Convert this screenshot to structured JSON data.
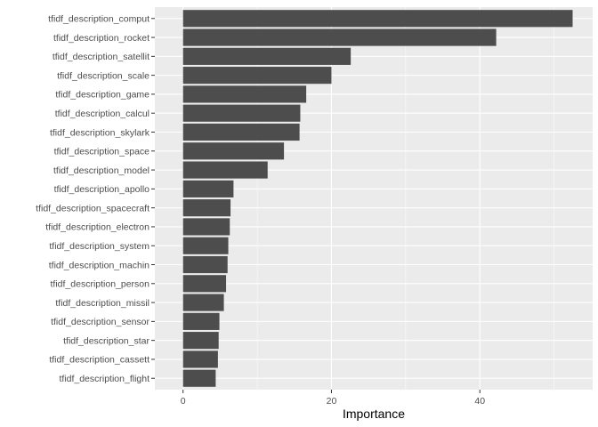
{
  "chart_data": {
    "type": "bar",
    "orientation": "horizontal",
    "xlabel": "Importance",
    "ylabel": "",
    "xlim": [
      -3.8,
      55.2
    ],
    "xticks": [
      0,
      20,
      40
    ],
    "grid": true,
    "legend": "none",
    "colors": {
      "panel_background": "#ebebeb",
      "grid_major": "#ffffff",
      "bar_fill": "#4d4d4d"
    },
    "categories": [
      "tfidf_description_comput",
      "tfidf_description_rocket",
      "tfidf_description_satellit",
      "tfidf_description_scale",
      "tfidf_description_game",
      "tfidf_description_calcul",
      "tfidf_description_skylark",
      "tfidf_description_space",
      "tfidf_description_model",
      "tfidf_description_apollo",
      "tfidf_description_spacecraft",
      "tfidf_description_electron",
      "tfidf_description_system",
      "tfidf_description_machin",
      "tfidf_description_person",
      "tfidf_description_missil",
      "tfidf_description_sensor",
      "tfidf_description_star",
      "tfidf_description_cassett",
      "tfidf_description_flight"
    ],
    "values": [
      52.5,
      42.2,
      22.6,
      20.0,
      16.6,
      15.8,
      15.7,
      13.6,
      11.4,
      6.8,
      6.4,
      6.3,
      6.1,
      6.0,
      5.8,
      5.5,
      4.9,
      4.8,
      4.7,
      4.4
    ]
  }
}
